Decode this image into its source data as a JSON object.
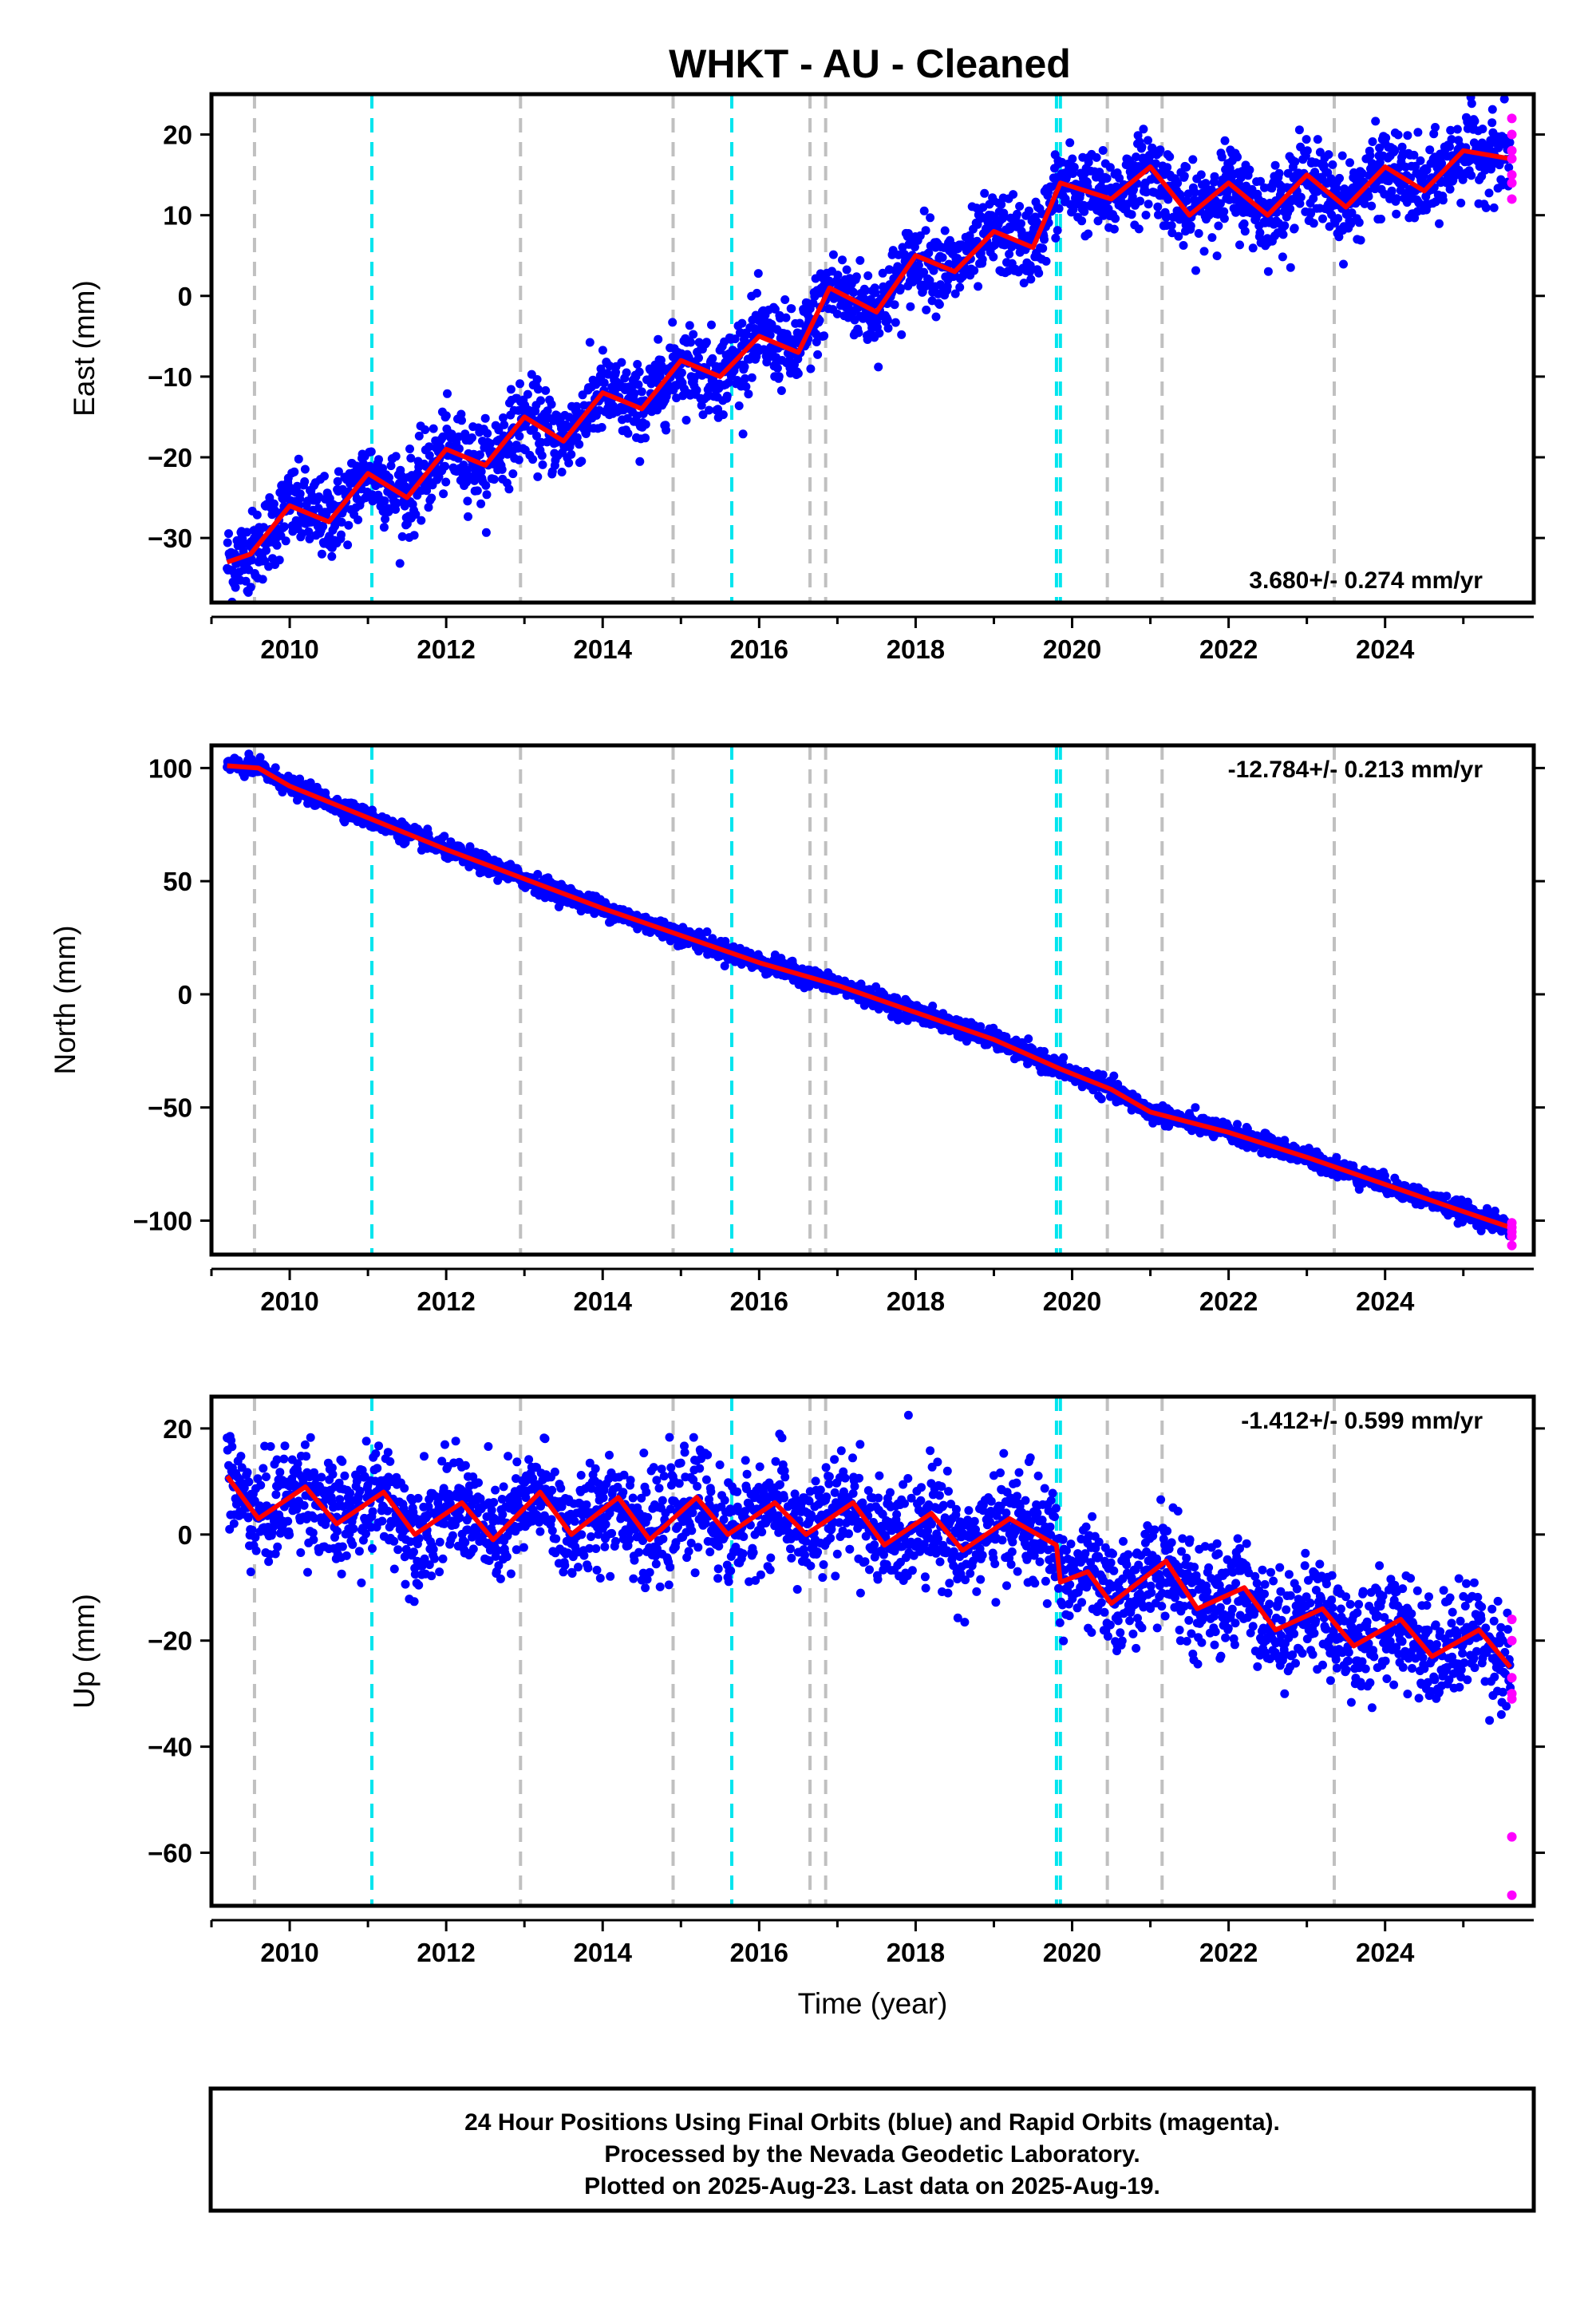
{
  "figure": {
    "title": "WHKT  - AU - Cleaned",
    "footer_lines": [
      "24 Hour Positions Using Final Orbits (blue) and Rapid Orbits (magenta).",
      "Processed by the Nevada Geodetic Laboratory.",
      "Plotted on 2025-Aug-23. Last data on 2025-Aug-19."
    ],
    "colors": {
      "final_orbit_points": "#0000ff",
      "rapid_orbit_points": "#ff00ff",
      "model_fit": "#ff0000",
      "equipment_change_lines": "#c0c0c0",
      "earthquake_lines": "#00e5ee"
    }
  },
  "chart_data": [
    {
      "type": "scatter",
      "component": "East",
      "ylabel": "East (mm)",
      "xlabel": "",
      "xlim": [
        2009.0,
        2025.9
      ],
      "ylim": [
        -38,
        25
      ],
      "xticks": [
        2010,
        2012,
        2014,
        2016,
        2018,
        2020,
        2022,
        2024
      ],
      "yticks": [
        -30,
        -20,
        -10,
        0,
        10,
        20
      ],
      "rate_label": "3.680+/- 0.274 mm/yr",
      "rate_position": "bottom-right",
      "model_fit": {
        "x": [
          2009.2,
          2009.5,
          2010.0,
          2010.5,
          2011.0,
          2011.5,
          2012.0,
          2012.5,
          2013.0,
          2013.5,
          2014.0,
          2014.5,
          2015.0,
          2015.5,
          2016.0,
          2016.5,
          2016.9,
          2017.5,
          2018.0,
          2018.5,
          2019.0,
          2019.5,
          2019.85,
          2020.5,
          2021.0,
          2021.5,
          2022.0,
          2022.5,
          2023.0,
          2023.5,
          2024.0,
          2024.5,
          2025.0,
          2025.6
        ],
        "y": [
          -33,
          -32,
          -26,
          -28,
          -22,
          -25,
          -19,
          -21,
          -15,
          -18,
          -12,
          -14,
          -8,
          -10,
          -5,
          -7,
          1,
          -2,
          5,
          3,
          8,
          6,
          14,
          12,
          16,
          10,
          14,
          10,
          15,
          11,
          16,
          13,
          18,
          17
        ]
      },
      "final_orbits": {
        "description_free": true,
        "x_range": [
          2009.2,
          2025.6
        ],
        "scatter_mm": 2.5
      },
      "rapid_orbits": {
        "x": [
          2025.62,
          2025.62,
          2025.62,
          2025.62,
          2025.62,
          2025.62,
          2025.62
        ],
        "y": [
          22,
          20,
          18,
          17,
          15,
          14,
          12
        ]
      },
      "vlines_equipment": [
        2009.55,
        2012.95,
        2014.9,
        2016.65,
        2016.85,
        2020.45,
        2021.15,
        2023.35
      ],
      "vlines_earthquake": [
        2011.05,
        2015.65,
        2019.8,
        2019.85
      ]
    },
    {
      "type": "scatter",
      "component": "North",
      "ylabel": "North (mm)",
      "xlabel": "",
      "xlim": [
        2009.0,
        2025.9
      ],
      "ylim": [
        -115,
        110
      ],
      "xticks": [
        2010,
        2012,
        2014,
        2016,
        2018,
        2020,
        2022,
        2024
      ],
      "yticks": [
        -100,
        -50,
        0,
        50,
        100
      ],
      "rate_label": "-12.784+/- 0.213 mm/yr",
      "rate_position": "top-right",
      "model_fit": {
        "x": [
          2009.2,
          2009.6,
          2010.0,
          2011.0,
          2012.0,
          2013.0,
          2014.0,
          2015.0,
          2016.0,
          2017.0,
          2018.0,
          2019.0,
          2019.85,
          2020.5,
          2021.0,
          2022.0,
          2023.0,
          2024.0,
          2025.0,
          2025.6
        ],
        "y": [
          101,
          100,
          92,
          78,
          64,
          51,
          38,
          26,
          14,
          4,
          -8,
          -20,
          -33,
          -42,
          -52,
          -61,
          -72,
          -84,
          -96,
          -103
        ]
      },
      "final_orbits": {
        "description_free": true,
        "x_range": [
          2009.2,
          2025.6
        ],
        "scatter_mm": 2.0
      },
      "rapid_orbits": {
        "x": [
          2025.62,
          2025.62,
          2025.62,
          2025.62,
          2025.62
        ],
        "y": [
          -101,
          -103,
          -105,
          -107,
          -111
        ]
      },
      "vlines_equipment": [
        2009.55,
        2012.95,
        2014.9,
        2016.65,
        2016.85,
        2020.45,
        2021.15,
        2023.35
      ],
      "vlines_earthquake": [
        2011.05,
        2015.65,
        2019.8,
        2019.85
      ]
    },
    {
      "type": "scatter",
      "component": "Up",
      "ylabel": "Up (mm)",
      "xlabel": "Time (year)",
      "xlim": [
        2009.0,
        2025.9
      ],
      "ylim": [
        -70,
        26
      ],
      "xticks": [
        2010,
        2012,
        2014,
        2016,
        2018,
        2020,
        2022,
        2024
      ],
      "yticks": [
        -60,
        -40,
        -20,
        0,
        20
      ],
      "rate_label": "-1.412+/- 0.599 mm/yr",
      "rate_position": "top-right",
      "model_fit": {
        "x": [
          2009.2,
          2009.6,
          2010.2,
          2010.6,
          2011.2,
          2011.6,
          2012.2,
          2012.6,
          2013.2,
          2013.6,
          2014.2,
          2014.6,
          2015.2,
          2015.6,
          2016.2,
          2016.6,
          2017.2,
          2017.6,
          2018.2,
          2018.6,
          2019.2,
          2019.8,
          2019.85,
          2020.2,
          2020.5,
          2021.2,
          2021.6,
          2022.2,
          2022.6,
          2023.2,
          2023.6,
          2024.2,
          2024.6,
          2025.2,
          2025.6
        ],
        "y": [
          11,
          3,
          9,
          2,
          8,
          0,
          6,
          -1,
          8,
          0,
          7,
          -1,
          7,
          0,
          6,
          0,
          6,
          -2,
          4,
          -3,
          3,
          -2,
          -9,
          -7,
          -13,
          -5,
          -14,
          -10,
          -18,
          -14,
          -21,
          -16,
          -23,
          -18,
          -25
        ]
      },
      "final_orbits": {
        "description_free": true,
        "x_range": [
          2009.2,
          2025.6
        ],
        "scatter_mm": 5.0
      },
      "rapid_orbits": {
        "x": [
          2025.62,
          2025.62,
          2025.62,
          2025.62,
          2025.62,
          2025.62,
          2025.62
        ],
        "y": [
          -16,
          -20,
          -27,
          -30,
          -31,
          -57,
          -68
        ]
      },
      "vlines_equipment": [
        2009.55,
        2012.95,
        2014.9,
        2016.65,
        2016.85,
        2020.45,
        2021.15,
        2023.35
      ],
      "vlines_earthquake": [
        2011.05,
        2015.65,
        2019.8,
        2019.85
      ]
    }
  ]
}
